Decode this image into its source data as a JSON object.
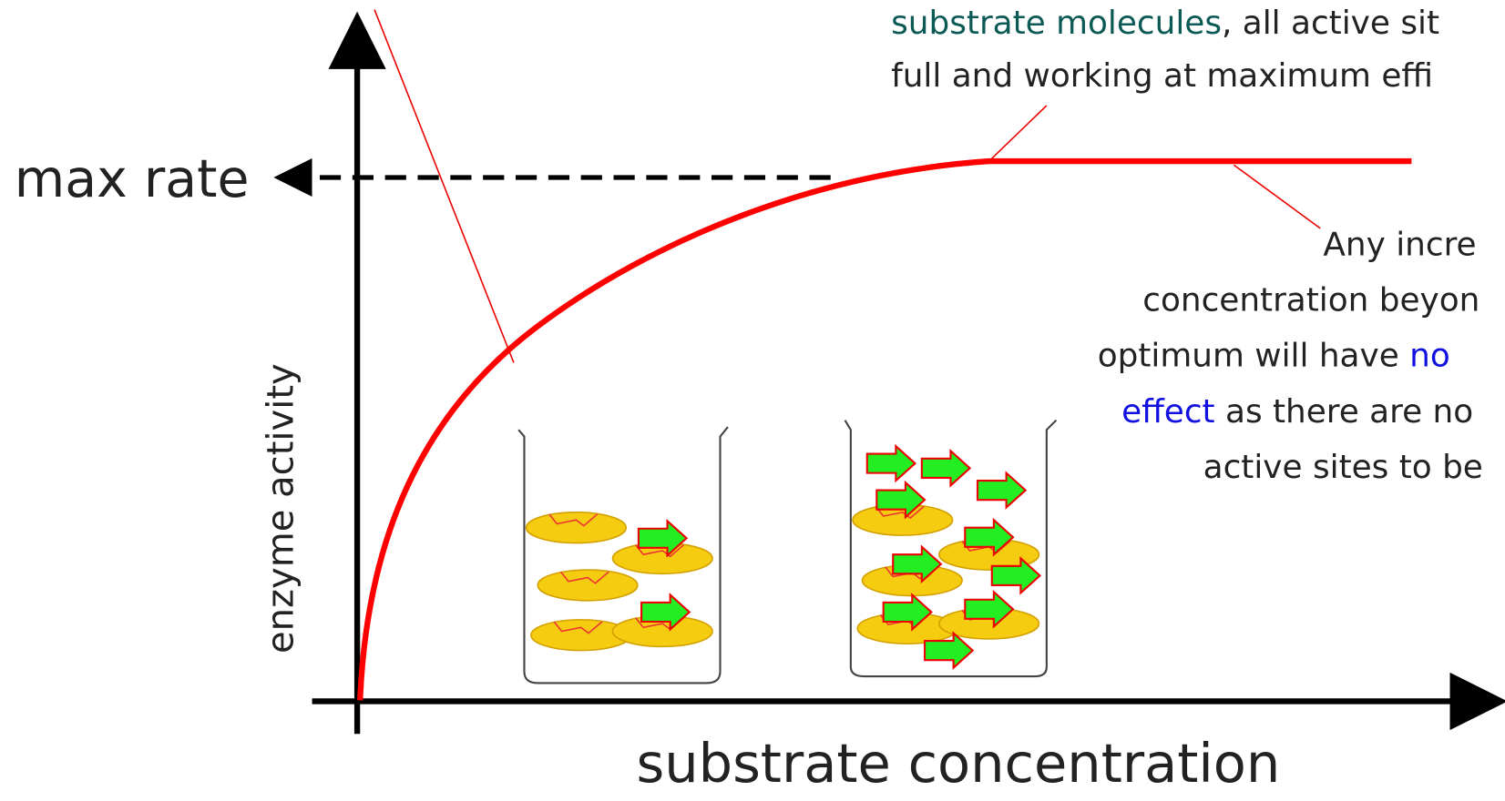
{
  "axes": {
    "y_label": "enzyme activity",
    "x_label": "substrate concentration",
    "max_rate": "max rate"
  },
  "annotations": {
    "top": {
      "highlight": "substrate molecules",
      "line1_rest": ", all active sit",
      "line2": "full and working at maximum effi"
    },
    "right": {
      "line1": "Any incre",
      "line2": "concentration beyon",
      "line3_start": "optimum will have ",
      "line3_highlight": "no",
      "line4_highlight": "effect",
      "line4_rest": " as there are no",
      "line5": "active sites to be"
    }
  }
}
